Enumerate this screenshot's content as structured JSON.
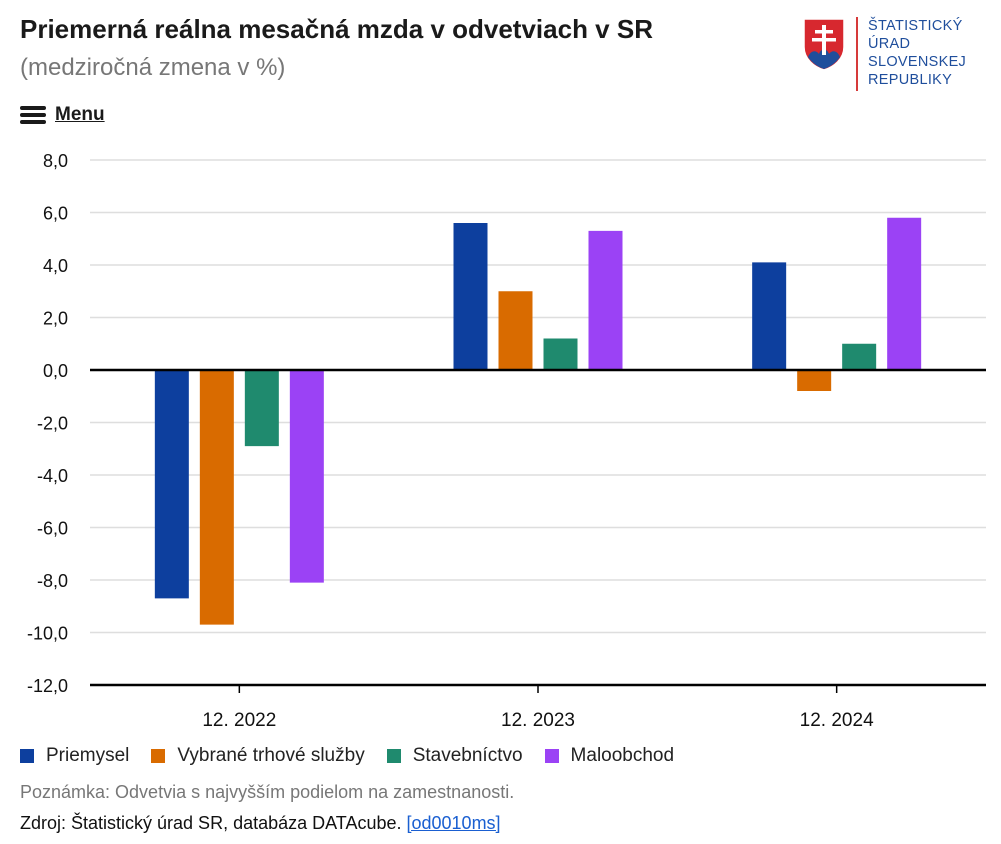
{
  "header": {
    "title": "Priemerná reálna mesačná mzda v odvetviach v SR",
    "subtitle": "(medziročná zmena v %)"
  },
  "logo": {
    "lines": [
      "ŠTATISTICKÝ",
      "ÚRAD",
      "SLOVENSKEJ",
      "REPUBLIKY"
    ],
    "icon": "slovak-coat-of-arms-icon"
  },
  "menu": {
    "label": "Menu",
    "icon": "hamburger-menu-icon"
  },
  "chart_data": {
    "type": "bar",
    "categories": [
      "12. 2022",
      "12. 2023",
      "12. 2024"
    ],
    "series": [
      {
        "name": "Priemysel",
        "color": "#0d3f9e",
        "values": [
          -8.7,
          5.6,
          4.1
        ]
      },
      {
        "name": "Vybrané trhové služby",
        "color": "#d96b00",
        "values": [
          -9.7,
          3.0,
          -0.8
        ]
      },
      {
        "name": "Stavebníctvo",
        "color": "#1f8a6e",
        "values": [
          -2.9,
          1.2,
          1.0
        ]
      },
      {
        "name": "Maloobchod",
        "color": "#9b42f5",
        "values": [
          -8.1,
          5.3,
          5.8
        ]
      }
    ],
    "ylim": [
      -12,
      8
    ],
    "yticks": [
      "8,0",
      "6,0",
      "4,0",
      "2,0",
      "0,0",
      "-2,0",
      "-4,0",
      "-6,0",
      "-8,0",
      "-10,0",
      "-12,0"
    ],
    "grid": true,
    "legend_position": "bottom"
  },
  "footer": {
    "note": "Poznámka: Odvetvia s najvyšším podielom na zamestnanosti.",
    "source_prefix": "Zdroj: Štatistický úrad SR, databáza DATAcube. ",
    "source_link": "[od0010ms]"
  }
}
